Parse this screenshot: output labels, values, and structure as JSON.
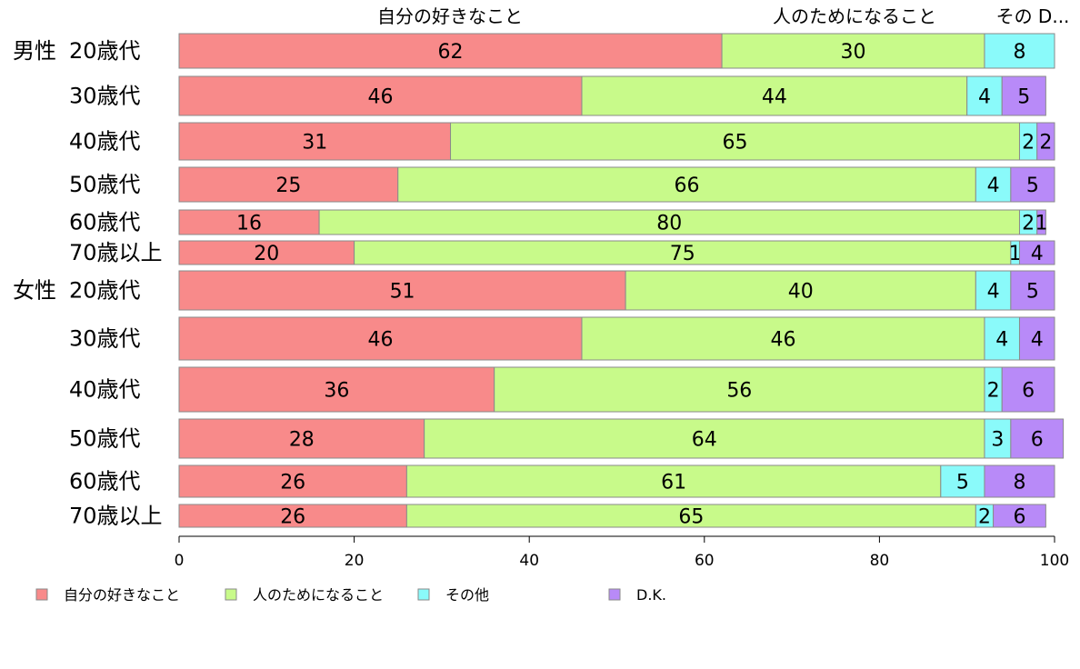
{
  "chart_data": {
    "type": "bar",
    "orientation": "horizontal",
    "stacked": true,
    "categories": [
      {
        "group": "男性",
        "label": "20歳代"
      },
      {
        "group": "",
        "label": "30歳代"
      },
      {
        "group": "",
        "label": "40歳代"
      },
      {
        "group": "",
        "label": "50歳代"
      },
      {
        "group": "",
        "label": "60歳代"
      },
      {
        "group": "",
        "label": "70歳以上"
      },
      {
        "group": "女性",
        "label": "20歳代"
      },
      {
        "group": "",
        "label": "30歳代"
      },
      {
        "group": "",
        "label": "40歳代"
      },
      {
        "group": "",
        "label": "50歳代"
      },
      {
        "group": "",
        "label": "60歳代"
      },
      {
        "group": "",
        "label": "70歳以上"
      }
    ],
    "series": [
      {
        "name": "自分の好きなこと",
        "color": "#f88a8a",
        "values": [
          62,
          46,
          31,
          25,
          16,
          20,
          51,
          46,
          36,
          28,
          26,
          26
        ]
      },
      {
        "name": "人のためになること",
        "color": "#c8fa8a",
        "values": [
          30,
          44,
          65,
          66,
          80,
          75,
          40,
          46,
          56,
          64,
          61,
          65
        ]
      },
      {
        "name": "その他",
        "color": "#8afafa",
        "values": [
          8,
          4,
          2,
          4,
          2,
          1,
          4,
          4,
          2,
          3,
          5,
          2
        ]
      },
      {
        "name": "D.K.",
        "color": "#b88af8",
        "values": [
          0,
          5,
          2,
          5,
          1,
          4,
          5,
          4,
          6,
          6,
          8,
          6
        ]
      }
    ],
    "top_labels": [
      "自分の好きなこと",
      "人のためになること",
      "その D..."
    ],
    "xlim": [
      0,
      100
    ],
    "xticks": [
      "0",
      "20",
      "40",
      "60",
      "80",
      "100"
    ],
    "legend_position": "bottom",
    "grid": false
  }
}
